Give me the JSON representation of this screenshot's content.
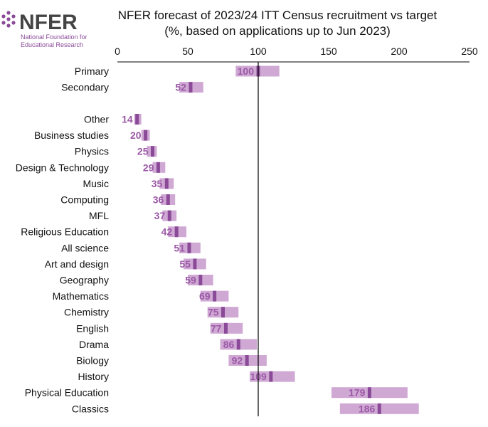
{
  "logo": {
    "name": "NFER",
    "subtitle_line1": "National Foundation for",
    "subtitle_line2": "Educational Research"
  },
  "colors": {
    "range": "#cfa8d4",
    "marker": "#8a4a98",
    "label": "#9b59a6",
    "brand": "#8a4a98",
    "text": "#111111"
  },
  "chart_data": {
    "type": "bar",
    "title_line1": "NFER forecast of 2023/24 ITT Census recruitment vs target",
    "title_line2": "(%, based on applications up to Jun 2023)",
    "xlim": [
      0,
      250
    ],
    "xticks": [
      0,
      50,
      100,
      150,
      200,
      250
    ],
    "reference_line": 100,
    "categories": [
      {
        "label": "Primary",
        "value": 100,
        "low": 84,
        "high": 115
      },
      {
        "label": "Secondary",
        "value": 52,
        "low": 44,
        "high": 61
      },
      {
        "label": "Other",
        "value": 14,
        "low": 12,
        "high": 17
      },
      {
        "label": "Business studies",
        "value": 20,
        "low": 17,
        "high": 23
      },
      {
        "label": "Physics",
        "value": 25,
        "low": 21,
        "high": 28
      },
      {
        "label": "Design & Technology",
        "value": 29,
        "low": 25,
        "high": 34
      },
      {
        "label": "Music",
        "value": 35,
        "low": 30,
        "high": 40
      },
      {
        "label": "Computing",
        "value": 36,
        "low": 31,
        "high": 41
      },
      {
        "label": "MFL",
        "value": 37,
        "low": 32,
        "high": 42
      },
      {
        "label": "Religious Education",
        "value": 42,
        "low": 36,
        "high": 49
      },
      {
        "label": "All science",
        "value": 51,
        "low": 44,
        "high": 59
      },
      {
        "label": "Art and design",
        "value": 55,
        "low": 47,
        "high": 63
      },
      {
        "label": "Geography",
        "value": 59,
        "low": 50,
        "high": 68
      },
      {
        "label": "Mathematics",
        "value": 69,
        "low": 59,
        "high": 79
      },
      {
        "label": "Chemistry",
        "value": 75,
        "low": 64,
        "high": 86
      },
      {
        "label": "English",
        "value": 77,
        "low": 66,
        "high": 89
      },
      {
        "label": "Drama",
        "value": 86,
        "low": 73,
        "high": 99
      },
      {
        "label": "Biology",
        "value": 92,
        "low": 79,
        "high": 106
      },
      {
        "label": "History",
        "value": 109,
        "low": 94,
        "high": 126
      },
      {
        "label": "Physical Education",
        "value": 179,
        "low": 152,
        "high": 206
      },
      {
        "label": "Classics",
        "value": 186,
        "low": 158,
        "high": 214
      }
    ]
  }
}
